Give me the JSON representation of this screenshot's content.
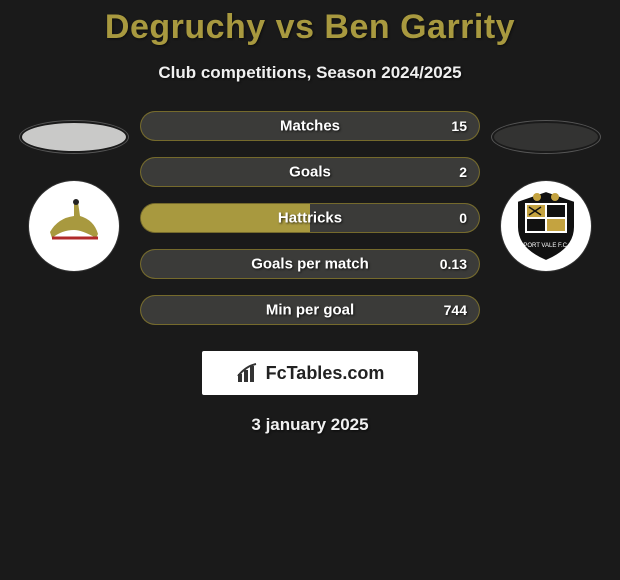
{
  "title": "Degruchy vs Ben Garrity",
  "subtitle": "Club competitions, Season 2024/2025",
  "date": "3 january 2025",
  "logo_text": "FcTables.com",
  "colors": {
    "bg": "#1a1a1a",
    "title_color": "#a8993f",
    "left_avatar_bg": "#c9c9c8",
    "right_avatar_bg": "#333332",
    "stat_left_color": "#a8993f",
    "stat_right_color": "#3b3b39",
    "pill_border": "rgba(0,0,0,0.3)"
  },
  "crest_left_colors": {
    "bg": "#ffffff",
    "accent": "#a8993f",
    "stroke": "#b02a2a"
  },
  "crest_right_colors": {
    "bg": "#ffffff",
    "dark": "#111111",
    "accent": "#c4a340"
  },
  "stats": [
    {
      "label": "Matches",
      "left_pct": 0,
      "right_pct": 100,
      "right_value": "15"
    },
    {
      "label": "Goals",
      "left_pct": 0,
      "right_pct": 100,
      "right_value": "2"
    },
    {
      "label": "Hattricks",
      "left_pct": 50,
      "right_pct": 50,
      "right_value": "0"
    },
    {
      "label": "Goals per match",
      "left_pct": 0,
      "right_pct": 100,
      "right_value": "0.13"
    },
    {
      "label": "Min per goal",
      "left_pct": 0,
      "right_pct": 100,
      "right_value": "744"
    }
  ]
}
